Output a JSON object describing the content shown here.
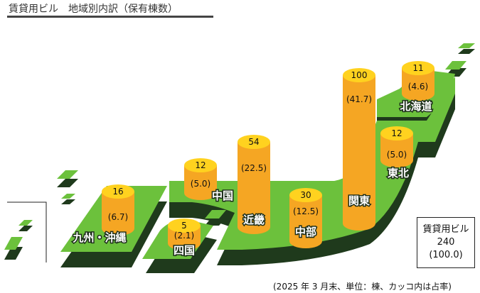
{
  "title": "賃貸用ビル　地域別内訳（保有棟数）",
  "colors": {
    "land": "#6cc13c",
    "land_shadow": "#1f3a1c",
    "cylinder": "#f5a623",
    "cylinder_top": "#ffd21f"
  },
  "regions": [
    {
      "name": "九州・沖縄",
      "count": "16",
      "share": "(6.7)"
    },
    {
      "name": "四国",
      "count": "5",
      "share": "(2.1)"
    },
    {
      "name": "中国",
      "count": "12",
      "share": "(5.0)"
    },
    {
      "name": "近畿",
      "count": "54",
      "share": "(22.5)"
    },
    {
      "name": "中部",
      "count": "30",
      "share": "(12.5)"
    },
    {
      "name": "関東",
      "count": "100",
      "share": "(41.7)"
    },
    {
      "name": "東北",
      "count": "12",
      "share": "(5.0)"
    },
    {
      "name": "北海道",
      "count": "11",
      "share": "(4.6)"
    }
  ],
  "total": {
    "label": "賃貸用ビル",
    "count": "240",
    "share": "(100.0)"
  },
  "note": "(2025 年 3 月末、単位：棟、カッコ内は占率)"
}
